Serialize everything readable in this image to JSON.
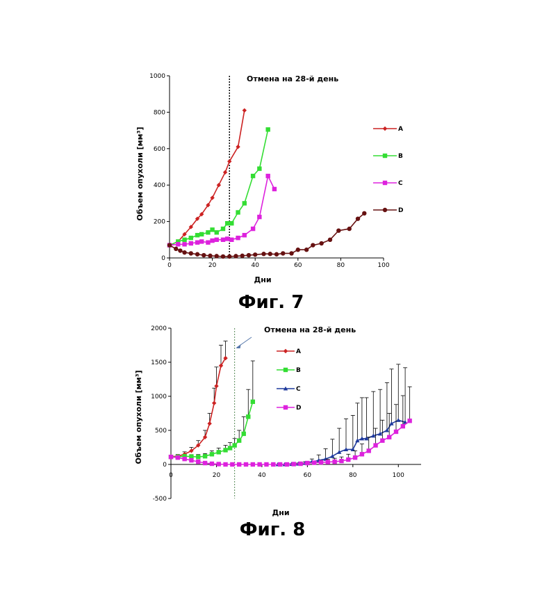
{
  "chart_data": [
    {
      "type": "line",
      "caption": "Фиг. 7",
      "annotation": "Отмена на 28-й день",
      "cutoff_x": 28,
      "xlabel": "Дни",
      "ylabel": "Объем опухоли  [мм³]",
      "xlim": [
        0,
        100
      ],
      "ylim": [
        0,
        1000
      ],
      "xticks": [
        "0",
        "20",
        "40",
        "60",
        "80",
        "100"
      ],
      "yticks": [
        "0",
        "200",
        "400",
        "600",
        "800",
        "1000"
      ],
      "legend_position": "right",
      "series": [
        {
          "name": "A",
          "color": "#cc2222",
          "marker": "diamond",
          "x": [
            0,
            4,
            7,
            10,
            13,
            15,
            18,
            20,
            23,
            26,
            28,
            32,
            35
          ],
          "y": [
            70,
            90,
            130,
            170,
            215,
            240,
            290,
            330,
            400,
            470,
            530,
            610,
            810
          ]
        },
        {
          "name": "B",
          "color": "#33dd33",
          "marker": "square",
          "x": [
            0,
            4,
            7,
            10,
            13,
            15,
            18,
            20,
            22,
            25,
            27,
            29,
            32,
            35,
            39,
            42,
            46
          ],
          "y": [
            70,
            90,
            100,
            110,
            125,
            130,
            140,
            155,
            140,
            160,
            190,
            190,
            250,
            300,
            450,
            490,
            705
          ]
        },
        {
          "name": "C",
          "color": "#dd22dd",
          "marker": "square",
          "x": [
            0,
            4,
            7,
            10,
            13,
            15,
            18,
            20,
            22,
            25,
            27,
            29,
            32,
            35,
            39,
            42,
            46,
            49
          ],
          "y": [
            70,
            75,
            75,
            80,
            85,
            90,
            85,
            95,
            100,
            100,
            105,
            100,
            110,
            125,
            160,
            225,
            450,
            378
          ]
        },
        {
          "name": "D",
          "color": "#661111",
          "marker": "circle",
          "x": [
            0,
            3,
            5,
            7,
            10,
            13,
            16,
            19,
            22,
            25,
            28,
            31,
            34,
            37,
            40,
            44,
            47,
            50,
            53,
            57,
            60,
            64,
            67,
            71,
            75,
            79,
            84,
            88,
            91
          ],
          "y": [
            70,
            50,
            40,
            30,
            25,
            20,
            15,
            12,
            10,
            8,
            8,
            10,
            12,
            15,
            18,
            22,
            22,
            20,
            25,
            25,
            45,
            45,
            70,
            80,
            100,
            150,
            160,
            215,
            245
          ]
        }
      ]
    },
    {
      "type": "line",
      "caption": "Фиг. 8",
      "annotation": "Отмена на 28-й день",
      "cutoff_x": 28,
      "xlabel": "Дни",
      "ylabel": "Объем опухоли  [мм³]",
      "xlim": [
        0,
        110
      ],
      "ylim": [
        -500,
        2000
      ],
      "xticks": [
        "0",
        "20",
        "40",
        "60",
        "80",
        "100"
      ],
      "yticks": [
        "-500",
        "0",
        "500",
        "1000",
        "1500",
        "2000"
      ],
      "legend_position": "top-right",
      "series": [
        {
          "name": "A",
          "color": "#cc2222",
          "marker": "diamond",
          "x": [
            0,
            3,
            6,
            9,
            12,
            15,
            17,
            19,
            20,
            22,
            24
          ],
          "y": [
            115,
            120,
            150,
            200,
            280,
            400,
            600,
            900,
            1150,
            1450,
            1560
          ],
          "err": [
            20,
            25,
            35,
            50,
            70,
            100,
            150,
            220,
            280,
            300,
            250
          ]
        },
        {
          "name": "B",
          "color": "#33dd33",
          "marker": "square",
          "x": [
            0,
            3,
            6,
            9,
            12,
            15,
            18,
            21,
            24,
            26,
            28,
            30,
            32,
            34,
            36
          ],
          "y": [
            110,
            110,
            120,
            115,
            110,
            120,
            150,
            180,
            210,
            240,
            280,
            350,
            450,
            700,
            920
          ],
          "err": [
            20,
            20,
            25,
            30,
            35,
            40,
            50,
            60,
            70,
            80,
            100,
            150,
            250,
            400,
            600
          ]
        },
        {
          "name": "C",
          "color": "#1f3a9c",
          "marker": "triangle",
          "x": [
            47,
            50,
            53,
            56,
            59,
            62,
            65,
            68,
            71,
            74,
            77,
            80,
            82,
            84,
            86,
            89,
            92,
            95,
            97,
            100,
            103
          ],
          "y": [
            0,
            0,
            5,
            10,
            20,
            40,
            60,
            80,
            120,
            180,
            220,
            220,
            350,
            380,
            380,
            420,
            450,
            500,
            600,
            650,
            620
          ],
          "err": [
            0,
            0,
            5,
            10,
            20,
            40,
            80,
            150,
            250,
            350,
            450,
            500,
            550,
            600,
            600,
            650,
            650,
            700,
            800,
            820,
            800
          ]
        },
        {
          "name": "D",
          "color": "#dd22dd",
          "marker": "square",
          "x": [
            0,
            3,
            6,
            9,
            12,
            15,
            18,
            21,
            24,
            27,
            30,
            33,
            36,
            39,
            42,
            45,
            48,
            51,
            54,
            57,
            60,
            63,
            66,
            69,
            72,
            75,
            78,
            81,
            84,
            87,
            90,
            93,
            96,
            99,
            102,
            105
          ],
          "y": [
            110,
            100,
            80,
            60,
            40,
            20,
            10,
            5,
            0,
            0,
            0,
            0,
            0,
            0,
            0,
            0,
            0,
            0,
            5,
            10,
            20,
            25,
            30,
            35,
            40,
            50,
            70,
            100,
            150,
            200,
            280,
            350,
            400,
            480,
            560,
            640
          ],
          "err": [
            10,
            10,
            10,
            10,
            10,
            10,
            10,
            10,
            5,
            5,
            5,
            5,
            5,
            5,
            5,
            5,
            5,
            5,
            5,
            10,
            10,
            20,
            30,
            40,
            50,
            60,
            80,
            100,
            150,
            200,
            250,
            300,
            350,
            400,
            450,
            500
          ]
        }
      ]
    }
  ]
}
